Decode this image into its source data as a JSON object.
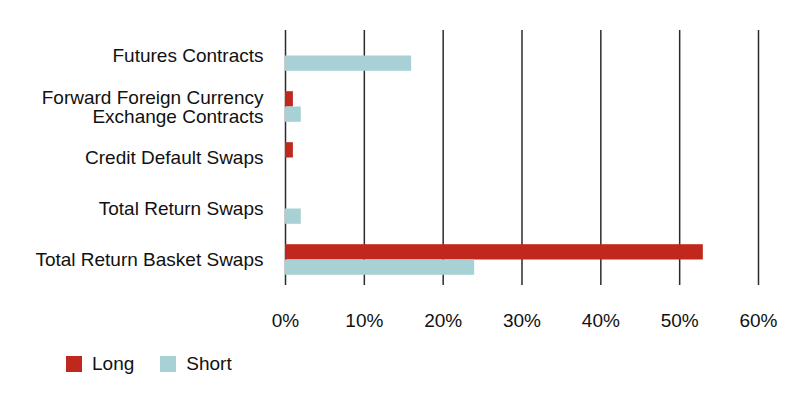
{
  "chart_data": {
    "type": "bar",
    "orientation": "horizontal",
    "categories": [
      "Futures Contracts",
      "Forward Foreign Currency\nExchange Contracts",
      "Credit Default Swaps",
      "Total Return Swaps",
      "Total Return Basket Swaps"
    ],
    "series": [
      {
        "name": "Long",
        "color": "#c0281e",
        "values": [
          0,
          1,
          1,
          0,
          53
        ]
      },
      {
        "name": "Short",
        "color": "#a8d1d5",
        "values": [
          16,
          2,
          0,
          2,
          24
        ]
      }
    ],
    "xlim": [
      0,
      60
    ],
    "xticks": [
      {
        "value": 0,
        "label": "0%"
      },
      {
        "value": 10,
        "label": "10%"
      },
      {
        "value": 20,
        "label": "20%"
      },
      {
        "value": 30,
        "label": "30%"
      },
      {
        "value": 40,
        "label": "40%"
      },
      {
        "value": 50,
        "label": "50%"
      },
      {
        "value": 60,
        "label": "60%"
      }
    ],
    "grid": true,
    "legend": "bottom-left"
  }
}
